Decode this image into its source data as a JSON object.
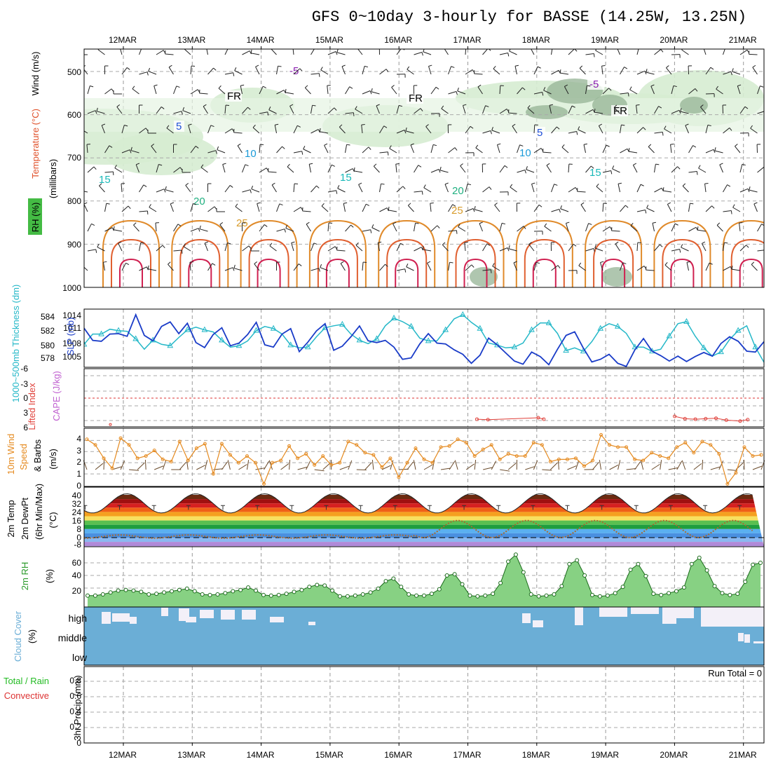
{
  "title": "GFS 0~10day 3-hourly for BASSE (14.25W, 13.25N)",
  "dates": [
    "12MAR",
    "13MAR",
    "14MAR",
    "15MAR",
    "16MAR",
    "17MAR",
    "18MAR",
    "19MAR",
    "20MAR",
    "21MAR"
  ],
  "colors": {
    "rh": "#2db82d",
    "temperature": "#e0522c",
    "wind_purple": "#7a1fa0",
    "slp": "#1a3cc8",
    "thickness": "#25b8c8",
    "lifted": "#e0403a",
    "cape": "#c060d0",
    "wind10": "#e58a1f",
    "rh2m": "#2a9a2a",
    "cloud": "#6baed6",
    "precip_total": "#22bb22",
    "precip_conv": "#dd3333"
  },
  "panels": {
    "upper": {
      "ylabel_wind": "Wind (m/s)",
      "ylabel_temp": "Temperature (°C)",
      "ylabel_rh": "RH (%)",
      "ylabel_mb": "(millibars)",
      "yticks": [
        "500",
        "600",
        "700",
        "800",
        "900",
        "1000"
      ],
      "contours": [
        {
          "label": "-5",
          "value": -5,
          "color": "#8a1fb0",
          "y": [
            498,
            505,
            500,
            497,
            502,
            500,
            493,
            498,
            505,
            500,
            496,
            502,
            499,
            495,
            494,
            498,
            504,
            507,
            503,
            495,
            488,
            486,
            487,
            497,
            491,
            493,
            491,
            490,
            485,
            495,
            490
          ]
        },
        {
          "label": "FR",
          "value": 0,
          "color": "#000000",
          "y": [
            563,
            567,
            562,
            563,
            558,
            560,
            560,
            555,
            560,
            566,
            562,
            561,
            557,
            560,
            565,
            565,
            563,
            563,
            564,
            570,
            575,
            578,
            581,
            575,
            580,
            585,
            592,
            585,
            592,
            595,
            598
          ]
        },
        {
          "label": "5",
          "value": 5,
          "color": "#2050d8",
          "y": [
            651,
            635,
            633,
            636,
            647,
            630,
            633,
            637,
            637,
            650,
            656,
            650,
            650,
            655,
            650,
            655,
            632,
            637,
            653,
            634,
            638,
            636,
            635,
            645,
            648,
            640,
            638,
            641,
            634,
            640,
            645
          ]
        },
        {
          "label": "10",
          "value": 10,
          "color": "#1a9ad8",
          "y": [
            712,
            710,
            700,
            707,
            708,
            700,
            698,
            700,
            705,
            708,
            708,
            700,
            698,
            700,
            702,
            700,
            694,
            694,
            695,
            696,
            694,
            692,
            691,
            692,
            695,
            692,
            690,
            693,
            690,
            688,
            692
          ]
        },
        {
          "label": "15",
          "value": 15,
          "color": "#18b8b8",
          "y": [
            754,
            750,
            752,
            750,
            748,
            748,
            746,
            750,
            752,
            754,
            755,
            753,
            748,
            748,
            748,
            750,
            748,
            746,
            745,
            746,
            744,
            742,
            741,
            743,
            742,
            742,
            742,
            744,
            742,
            742,
            742
          ]
        },
        {
          "label": "20",
          "value": 20,
          "color": "#20b080",
          "y": [
            806,
            805,
            803,
            804,
            803,
            803,
            800,
            801,
            800,
            800,
            798,
            800,
            798,
            796,
            795,
            796,
            784,
            786,
            784,
            789,
            792,
            791,
            796,
            796,
            797,
            798,
            796,
            798,
            796,
            797,
            796
          ]
        },
        {
          "label": "25",
          "value": 25,
          "color": "#d89b2a",
          "y": [
            880,
            860,
            848,
            855,
            857,
            850,
            850,
            860,
            865,
            850,
            850,
            845,
            845,
            845,
            845,
            840,
            820,
            825,
            820,
            825,
            830,
            832,
            835,
            840,
            842,
            840,
            843,
            842,
            840,
            845,
            848
          ]
        }
      ]
    },
    "slp": {
      "ylabel_thk": "1000~500mb Thickness (dm)",
      "ylabel_slp": "SLP (mb)",
      "yticks_thk": [
        "584",
        "582",
        "580",
        "578"
      ],
      "yticks_slp": [
        "1014",
        "1011",
        "1008",
        "1005"
      ],
      "slp_values": [
        1011.5,
        1008.8,
        1008.6,
        1010.2,
        1010.3,
        1009.7,
        1014.5,
        1009.9,
        1008.7,
        1011.9,
        1012.9,
        1010.3,
        1012.6,
        1008.3,
        1007.2,
        1010.1,
        1011.6,
        1007.6,
        1008.2,
        1010.1,
        1012.8,
        1007.8,
        1007.3,
        1010.2,
        1011.4,
        1006.3,
        1008.4,
        1010.9,
        1012.5,
        1006.6,
        1007.5,
        1009.6,
        1012.0,
        1008.7,
        1008.3,
        1008.8,
        1007.3,
        1004.6,
        1004.9,
        1008.0,
        1010.3,
        1008.2,
        1008.0,
        1006.7,
        1005.7,
        1003.7,
        1005.5,
        1009.3,
        1007.8,
        1006.0,
        1004.2,
        1003.5,
        1006.2,
        1005.2,
        1003.4,
        1006.8,
        1009.9,
        1010.7,
        1007.1,
        1004.0,
        1004.6,
        1005.7,
        1003.7,
        1003.0,
        1006.7,
        1009.2,
        1006.4,
        1005.4,
        1004.2,
        1005.3,
        1004.1,
        1005.2,
        1006.1,
        1005.3,
        1008.1,
        1009.6,
        1008.6,
        1006.4,
        1006.2,
        1008.5
      ],
      "thk_values": [
        580.0,
        581.5,
        581.5,
        582.2,
        582.0,
        581.9,
        580.8,
        579.3,
        580.6,
        580.0,
        579.8,
        581.0,
        582.1,
        582.5,
        582.1,
        581.8,
        580.6,
        579.6,
        579.8,
        580.5,
        582.0,
        582.6,
        582.3,
        581.5,
        579.9,
        579.5,
        579.6,
        581.1,
        582.4,
        582.7,
        582.9,
        581.5,
        580.6,
        580.1,
        580.8,
        582.7,
        583.8,
        583.3,
        582.6,
        580.9,
        580.5,
        580.5,
        582.1,
        583.7,
        584.3,
        583.2,
        582.3,
        580.2,
        579.9,
        579.5,
        579.6,
        580.2,
        582.1,
        583.1,
        583.1,
        581.6,
        579.1,
        579.5,
        579.0,
        580.4,
        582.3,
        583.0,
        582.6,
        581.6,
        579.6,
        579.6,
        579.0,
        579.3,
        581.2,
        583.0,
        583.3,
        581.2,
        579.5,
        578.3,
        578.9,
        580.7,
        582.0,
        582.7,
        579.6,
        577.4
      ]
    },
    "cape": {
      "ylabel_li": "Lifted Index",
      "ylabel_cape": "CAPE (J/kg)",
      "yticks": [
        "-6",
        "-3",
        "0",
        "3",
        "6"
      ],
      "li_points": [
        [
          0.31,
          5.5
        ],
        [
          5.63,
          4.4
        ],
        [
          5.79,
          4.5
        ],
        [
          6.52,
          4.1
        ],
        [
          6.6,
          4.4
        ],
        [
          8.5,
          3.8
        ],
        [
          8.65,
          4.3
        ],
        [
          8.8,
          4.4
        ],
        [
          8.95,
          4.3
        ],
        [
          9.1,
          4.2
        ],
        [
          9.25,
          4.6
        ],
        [
          9.45,
          4.8
        ],
        [
          9.56,
          4.5
        ]
      ]
    },
    "wind10": {
      "ylabel1": "10m Wind",
      "ylabel2": "Speed",
      "ylabel3": "& Barbs",
      "ylabel_unit": "(m/s)",
      "yticks": [
        "4",
        "3",
        "2",
        "1",
        "0"
      ],
      "speed": [
        4.1,
        3.6,
        2.4,
        1.5,
        4.2,
        3.6,
        2.4,
        2.6,
        3.1,
        2.3,
        2.1,
        3.9,
        2.2,
        3.3,
        3.7,
        1.0,
        3.7,
        2.7,
        2.0,
        2.6,
        2.0,
        0.1,
        2.0,
        2.2,
        3.5,
        2.4,
        2.8,
        1.8,
        2.6,
        1.8,
        2.0,
        3.9,
        3.6,
        2.9,
        2.7,
        1.6,
        2.4,
        0.7,
        2.0,
        3.3,
        2.3,
        2.0,
        3.4,
        3.5,
        4.1,
        3.8,
        2.6,
        3.2,
        3.6,
        2.3,
        2.8,
        2.6,
        2.6,
        3.8,
        3.6,
        2.1,
        2.3,
        2.3,
        2.4,
        1.7,
        2.2,
        4.5,
        3.6,
        3.4,
        3.4,
        2.3,
        2.2,
        2.9,
        2.6,
        2.4,
        3.4,
        3.8,
        2.9,
        3.9,
        3.6,
        2.8,
        0.1,
        1.1,
        3.4,
        2.6,
        2.7
      ]
    },
    "temp2m": {
      "ylabel1": "2m Temp",
      "ylabel2": "2m DewPt",
      "ylabel3": "(6hr Min/Max)",
      "ylabel_unit": "(°C)",
      "yticks": [
        "40",
        "32",
        "24",
        "16",
        "8",
        "0",
        "-8"
      ]
    },
    "rh2m": {
      "ylabel": "2m RH",
      "ylabel_unit": "(%)",
      "yticks": [
        "60",
        "40",
        "20"
      ],
      "values": [
        8,
        8,
        10,
        13,
        16,
        17,
        16,
        14,
        10,
        11,
        13,
        15,
        17,
        19,
        15,
        10,
        9,
        10,
        12,
        15,
        17,
        21,
        16,
        9,
        8,
        9,
        11,
        14,
        17,
        22,
        25,
        24,
        16,
        7,
        7,
        8,
        10,
        13,
        19,
        31,
        35,
        22,
        10,
        8,
        8,
        11,
        18,
        40,
        42,
        26,
        8,
        7,
        8,
        11,
        28,
        62,
        73,
        45,
        10,
        7,
        8,
        10,
        23,
        58,
        64,
        40,
        9,
        7,
        8,
        12,
        22,
        49,
        58,
        39,
        11,
        9,
        12,
        15,
        21,
        58,
        68,
        48,
        23,
        12,
        9,
        11,
        30,
        57,
        60
      ]
    },
    "cloud": {
      "ylabel": "Cloud Cover",
      "ylabel_unit": "(%)",
      "levels": [
        "high",
        "middle",
        "low"
      ]
    },
    "precip": {
      "ylabel_total": "Total / Rain",
      "ylabel_conv": "Convective",
      "ylabel_unit": "3hr Precip (mm)",
      "yticks": [
        "0.8",
        "0.6",
        "0.4",
        "0.2",
        "0"
      ],
      "run_total": "Run Total = 0"
    }
  }
}
